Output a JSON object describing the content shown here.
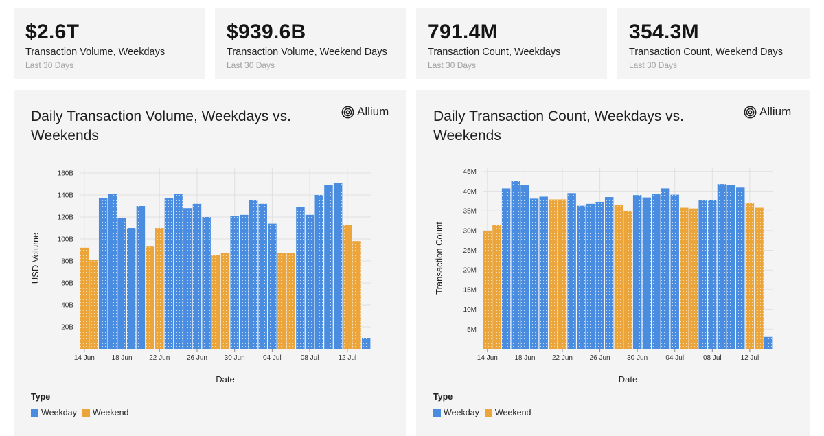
{
  "colors": {
    "weekday": "#4a8de0",
    "weekend": "#eba53a",
    "grid": "#e0e0e0",
    "axis": "#555555"
  },
  "kpis": [
    {
      "value": "$2.6T",
      "label": "Transaction Volume, Weekdays",
      "sub": "Last 30 Days"
    },
    {
      "value": "$939.6B",
      "label": "Transaction Volume, Weekend Days",
      "sub": "Last 30 Days"
    },
    {
      "value": "791.4M",
      "label": "Transaction Count, Weekdays",
      "sub": "Last 30 Days"
    },
    {
      "value": "354.3M",
      "label": "Transaction Count, Weekend Days",
      "sub": "Last 30 Days"
    }
  ],
  "logo": {
    "text": "Allium",
    "icon": "allium-logo-icon"
  },
  "legend": {
    "title": "Type",
    "weekday": "Weekday",
    "weekend": "Weekend"
  },
  "chart_data": [
    {
      "type": "bar",
      "title": "Daily Transaction Volume, Weekdays vs. Weekends",
      "xlabel": "Date",
      "ylabel": "USD Volume",
      "ylim": [
        0,
        165
      ],
      "yticks": [
        20,
        40,
        60,
        80,
        100,
        120,
        140,
        160
      ],
      "ytick_labels": [
        "20B",
        "40B",
        "60B",
        "80B",
        "100B",
        "120B",
        "140B",
        "160B"
      ],
      "xtick_labels": [
        "14 Jun",
        "18 Jun",
        "22 Jun",
        "26 Jun",
        "30 Jun",
        "04 Jul",
        "08 Jul",
        "12 Jul"
      ],
      "xtick_indices": [
        0,
        4,
        8,
        12,
        16,
        20,
        24,
        28
      ],
      "categories": [
        "14 Jun",
        "15 Jun",
        "16 Jun",
        "17 Jun",
        "18 Jun",
        "19 Jun",
        "20 Jun",
        "21 Jun",
        "22 Jun",
        "23 Jun",
        "24 Jun",
        "25 Jun",
        "26 Jun",
        "27 Jun",
        "28 Jun",
        "29 Jun",
        "30 Jun",
        "01 Jul",
        "02 Jul",
        "03 Jul",
        "04 Jul",
        "05 Jul",
        "06 Jul",
        "07 Jul",
        "08 Jul",
        "09 Jul",
        "10 Jul",
        "11 Jul",
        "12 Jul",
        "13 Jul",
        "14 Jul"
      ],
      "values": [
        92,
        81,
        137,
        141,
        119,
        110,
        130,
        93,
        110,
        137,
        141,
        128,
        132,
        120,
        85,
        87,
        121,
        122,
        135,
        132,
        114,
        87,
        87,
        129,
        122,
        140,
        149,
        151,
        113,
        98,
        10
      ],
      "types": [
        "weekend",
        "weekend",
        "weekday",
        "weekday",
        "weekday",
        "weekday",
        "weekday",
        "weekend",
        "weekend",
        "weekday",
        "weekday",
        "weekday",
        "weekday",
        "weekday",
        "weekend",
        "weekend",
        "weekday",
        "weekday",
        "weekday",
        "weekday",
        "weekday",
        "weekend",
        "weekend",
        "weekday",
        "weekday",
        "weekday",
        "weekday",
        "weekday",
        "weekend",
        "weekend",
        "weekday"
      ]
    },
    {
      "type": "bar",
      "title": "Daily Transaction Count, Weekdays vs. Weekends",
      "xlabel": "Date",
      "ylabel": "Transaction Count",
      "ylim": [
        0,
        46
      ],
      "yticks": [
        5,
        10,
        15,
        20,
        25,
        30,
        35,
        40,
        45
      ],
      "ytick_labels": [
        "5M",
        "10M",
        "15M",
        "20M",
        "25M",
        "30M",
        "35M",
        "40M",
        "45M"
      ],
      "xtick_labels": [
        "14 Jun",
        "18 Jun",
        "22 Jun",
        "26 Jun",
        "30 Jun",
        "04 Jul",
        "08 Jul",
        "12 Jul"
      ],
      "xtick_indices": [
        0,
        4,
        8,
        12,
        16,
        20,
        24,
        28
      ],
      "categories": [
        "14 Jun",
        "15 Jun",
        "16 Jun",
        "17 Jun",
        "18 Jun",
        "19 Jun",
        "20 Jun",
        "21 Jun",
        "22 Jun",
        "23 Jun",
        "24 Jun",
        "25 Jun",
        "26 Jun",
        "27 Jun",
        "28 Jun",
        "29 Jun",
        "30 Jun",
        "01 Jul",
        "02 Jul",
        "03 Jul",
        "04 Jul",
        "05 Jul",
        "06 Jul",
        "07 Jul",
        "08 Jul",
        "09 Jul",
        "10 Jul",
        "11 Jul",
        "12 Jul",
        "13 Jul",
        "14 Jul"
      ],
      "values": [
        29.8,
        31.5,
        40.7,
        42.6,
        41.5,
        38.1,
        38.6,
        37.9,
        37.9,
        39.5,
        36.3,
        36.8,
        37.3,
        38.5,
        36.5,
        34.9,
        39.0,
        38.4,
        39.2,
        40.7,
        39.1,
        35.8,
        35.6,
        37.7,
        37.7,
        41.8,
        41.6,
        40.9,
        37.0,
        35.8,
        3.0
      ],
      "types": [
        "weekend",
        "weekend",
        "weekday",
        "weekday",
        "weekday",
        "weekday",
        "weekday",
        "weekend",
        "weekend",
        "weekday",
        "weekday",
        "weekday",
        "weekday",
        "weekday",
        "weekend",
        "weekend",
        "weekday",
        "weekday",
        "weekday",
        "weekday",
        "weekday",
        "weekend",
        "weekend",
        "weekday",
        "weekday",
        "weekday",
        "weekday",
        "weekday",
        "weekend",
        "weekend",
        "weekday"
      ]
    }
  ]
}
